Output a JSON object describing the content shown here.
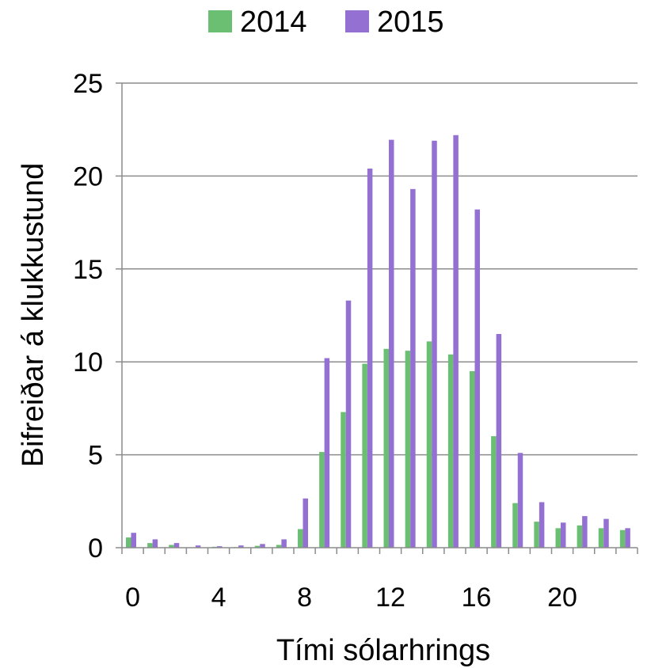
{
  "chart_data": {
    "type": "bar",
    "x": [
      0,
      1,
      2,
      3,
      4,
      5,
      6,
      7,
      8,
      9,
      10,
      11,
      12,
      13,
      14,
      15,
      16,
      17,
      18,
      19,
      20,
      21,
      22,
      23
    ],
    "x_tick_labels": [
      "0",
      "4",
      "8",
      "12",
      "16",
      "20"
    ],
    "x_tick_values": [
      0,
      4,
      8,
      12,
      16,
      20
    ],
    "y_tick_labels": [
      "0",
      "5",
      "10",
      "15",
      "20",
      "25"
    ],
    "series": [
      {
        "name": "2014",
        "color": "#6bbf73",
        "values": [
          0.55,
          0.25,
          0.15,
          0.02,
          0.05,
          0.03,
          0.1,
          0.15,
          1.0,
          5.15,
          7.3,
          9.9,
          10.7,
          10.6,
          11.1,
          10.4,
          9.5,
          6.0,
          2.4,
          1.4,
          1.05,
          1.2,
          1.05,
          0.95
        ]
      },
      {
        "name": "2015",
        "color": "#9370d1",
        "values": [
          0.8,
          0.45,
          0.25,
          0.12,
          0.08,
          0.12,
          0.2,
          0.45,
          2.65,
          10.2,
          13.3,
          20.4,
          21.95,
          19.3,
          21.9,
          22.2,
          18.2,
          11.5,
          5.1,
          2.45,
          1.35,
          1.7,
          1.55,
          1.05
        ]
      }
    ],
    "xlabel": "Tími sólarhrings",
    "ylabel": "Bifreiðar á klukkustund",
    "ylim": [
      0,
      25
    ],
    "y_ticks": [
      0,
      5,
      10,
      15,
      20,
      25
    ],
    "grid": true,
    "legend_position": "top"
  }
}
